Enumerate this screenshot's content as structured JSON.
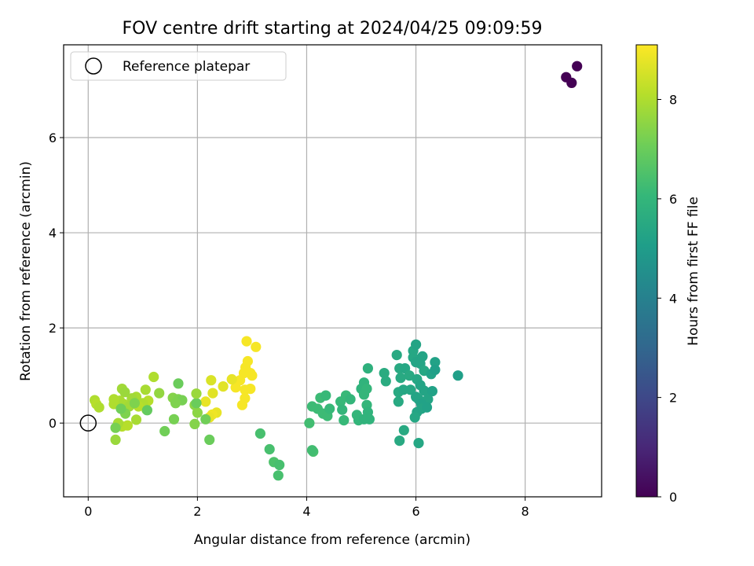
{
  "chart_data": {
    "type": "scatter",
    "title": "FOV centre drift starting at 2024/04/25 09:09:59",
    "xlabel": "Angular distance from reference (arcmin)",
    "ylabel": "Rotation from reference (arcmin)",
    "xlim": [
      -0.45,
      9.4
    ],
    "ylim": [
      -1.55,
      7.95
    ],
    "xticks": [
      0,
      2,
      4,
      6,
      8
    ],
    "yticks": [
      0,
      2,
      4,
      6
    ],
    "grid": true,
    "legend": {
      "position": "top-left",
      "entries": [
        {
          "label": "Reference platepar",
          "marker": "open-circle"
        }
      ]
    },
    "reference_point": {
      "x": 0,
      "y": 0
    },
    "colorbar": {
      "label": "Hours from first FF file",
      "range": [
        0,
        9.1
      ],
      "ticks": [
        0,
        2,
        4,
        6,
        8
      ],
      "colormap": "viridis",
      "stops": [
        "#440154",
        "#482878",
        "#3e4989",
        "#31688e",
        "#26828e",
        "#1f9e89",
        "#35b779",
        "#6ece58",
        "#b5de2b",
        "#fde725"
      ]
    },
    "series": [
      {
        "points": [
          [
            8.75,
            7.27,
            0
          ],
          [
            8.85,
            7.15,
            0
          ],
          [
            8.95,
            7.5,
            0
          ],
          [
            2.9,
            1.72,
            9
          ],
          [
            3.07,
            1.6,
            9
          ],
          [
            2.92,
            1.3,
            9
          ],
          [
            2.88,
            1.17,
            9
          ],
          [
            2.85,
            1.05,
            9
          ],
          [
            2.97,
            1.05,
            9
          ],
          [
            3.0,
            1.0,
            9
          ],
          [
            2.78,
            0.9,
            9
          ],
          [
            2.7,
            0.75,
            9
          ],
          [
            2.87,
            0.7,
            9
          ],
          [
            2.97,
            0.72,
            9
          ],
          [
            2.87,
            0.52,
            9
          ],
          [
            2.82,
            0.38,
            9
          ],
          [
            2.63,
            0.92,
            8.8
          ],
          [
            2.47,
            0.77,
            8.7
          ],
          [
            2.25,
            0.9,
            8.6
          ],
          [
            2.28,
            0.63,
            8.7
          ],
          [
            2.15,
            0.45,
            8.8
          ],
          [
            2.35,
            0.22,
            8.8
          ],
          [
            2.27,
            0.18,
            8.9
          ],
          [
            2.22,
            0.12,
            8.8
          ],
          [
            1.2,
            0.97,
            8.0
          ],
          [
            1.05,
            0.7,
            7.9
          ],
          [
            1.1,
            0.47,
            8.1
          ],
          [
            1.0,
            0.42,
            8.0
          ],
          [
            1.07,
            0.28,
            8.0
          ],
          [
            0.92,
            0.35,
            8.1
          ],
          [
            0.88,
            0.55,
            7.9
          ],
          [
            0.8,
            0.52,
            7.8
          ],
          [
            0.62,
            0.72,
            7.8
          ],
          [
            0.67,
            0.65,
            7.7
          ],
          [
            0.58,
            0.47,
            7.9
          ],
          [
            0.47,
            0.5,
            8.0
          ],
          [
            0.47,
            0.4,
            8.0
          ],
          [
            0.65,
            0.4,
            7.9
          ],
          [
            0.75,
            0.35,
            7.8
          ],
          [
            0.12,
            0.48,
            8.0
          ],
          [
            0.15,
            0.4,
            8.1
          ],
          [
            0.2,
            0.33,
            8.0
          ],
          [
            0.72,
            -0.05,
            8.1
          ],
          [
            0.62,
            -0.07,
            8.1
          ],
          [
            0.55,
            0.0,
            7.9
          ],
          [
            0.5,
            -0.35,
            7.7
          ],
          [
            0.88,
            0.07,
            7.9
          ],
          [
            1.3,
            0.63,
            7.6
          ],
          [
            1.55,
            0.53,
            7.4
          ],
          [
            1.65,
            0.5,
            7.3
          ],
          [
            1.72,
            0.48,
            7.2
          ],
          [
            1.6,
            0.42,
            7.3
          ],
          [
            1.65,
            0.83,
            7.0
          ],
          [
            1.95,
            0.38,
            7.5
          ],
          [
            2.0,
            0.22,
            7.5
          ],
          [
            1.95,
            -0.02,
            7.4
          ],
          [
            1.57,
            0.08,
            7.2
          ],
          [
            2.15,
            0.08,
            7.1
          ],
          [
            1.4,
            -0.17,
            7.1
          ],
          [
            2.22,
            -0.35,
            7.0
          ],
          [
            0.5,
            -0.1,
            7.2
          ],
          [
            0.68,
            0.2,
            7.3
          ],
          [
            0.6,
            0.3,
            7.1
          ],
          [
            0.85,
            0.42,
            7.3
          ],
          [
            1.08,
            0.27,
            6.9
          ],
          [
            1.98,
            0.42,
            7.0
          ],
          [
            1.98,
            0.62,
            7.7
          ],
          [
            3.15,
            -0.22,
            6.4
          ],
          [
            3.32,
            -0.55,
            6.4
          ],
          [
            3.4,
            -0.82,
            6.5
          ],
          [
            3.5,
            -0.88,
            6.4
          ],
          [
            3.48,
            -1.1,
            6.4
          ],
          [
            4.12,
            -0.6,
            6.4
          ],
          [
            4.1,
            -0.57,
            6.3
          ],
          [
            4.05,
            0.0,
            6.3
          ],
          [
            4.1,
            0.35,
            6.2
          ],
          [
            4.2,
            0.3,
            6.2
          ],
          [
            4.25,
            0.53,
            6.2
          ],
          [
            4.35,
            0.58,
            6.1
          ],
          [
            4.3,
            0.2,
            6.2
          ],
          [
            4.38,
            0.15,
            6.2
          ],
          [
            4.42,
            0.3,
            6.1
          ],
          [
            4.62,
            0.45,
            6.1
          ],
          [
            4.72,
            0.58,
            6.1
          ],
          [
            4.8,
            0.5,
            6.0
          ],
          [
            4.65,
            0.28,
            6.0
          ],
          [
            4.68,
            0.06,
            6.1
          ],
          [
            4.92,
            0.17,
            6.0
          ],
          [
            4.95,
            0.06,
            6.0
          ],
          [
            5.05,
            0.85,
            5.9
          ],
          [
            5.0,
            0.72,
            5.9
          ],
          [
            5.1,
            0.72,
            6.0
          ],
          [
            5.05,
            0.6,
            6.0
          ],
          [
            5.12,
            1.15,
            5.8
          ],
          [
            5.1,
            0.38,
            6.0
          ],
          [
            5.12,
            0.23,
            5.9
          ],
          [
            5.15,
            0.08,
            5.9
          ],
          [
            5.05,
            0.08,
            5.9
          ],
          [
            5.42,
            1.05,
            5.6
          ],
          [
            5.45,
            0.88,
            5.6
          ],
          [
            5.65,
            1.43,
            5.5
          ],
          [
            5.7,
            1.15,
            5.5
          ],
          [
            5.8,
            1.15,
            5.4
          ],
          [
            5.72,
            0.95,
            5.5
          ],
          [
            5.88,
            1.0,
            5.5
          ],
          [
            5.95,
            1.52,
            5.4
          ],
          [
            6.0,
            1.65,
            5.3
          ],
          [
            5.95,
            1.38,
            5.4
          ],
          [
            6.0,
            1.28,
            5.3
          ],
          [
            6.08,
            1.25,
            5.3
          ],
          [
            6.12,
            1.4,
            5.3
          ],
          [
            6.15,
            1.1,
            5.4
          ],
          [
            6.02,
            0.92,
            5.4
          ],
          [
            6.08,
            0.8,
            5.3
          ],
          [
            5.68,
            0.65,
            5.5
          ],
          [
            5.77,
            0.7,
            5.4
          ],
          [
            5.9,
            0.7,
            5.4
          ],
          [
            6.15,
            0.68,
            5.3
          ],
          [
            6.22,
            0.5,
            5.3
          ],
          [
            6.3,
            0.67,
            5.2
          ],
          [
            6.28,
            1.03,
            5.2
          ],
          [
            6.35,
            1.28,
            5.2
          ],
          [
            6.35,
            1.12,
            5.1
          ],
          [
            6.0,
            0.55,
            5.3
          ],
          [
            6.05,
            0.5,
            5.3
          ],
          [
            6.1,
            0.4,
            5.2
          ],
          [
            5.68,
            0.45,
            5.5
          ],
          [
            6.1,
            0.3,
            5.3
          ],
          [
            6.2,
            0.33,
            5.2
          ],
          [
            6.02,
            0.23,
            5.3
          ],
          [
            5.98,
            0.12,
            5.4
          ],
          [
            5.78,
            -0.15,
            5.5
          ],
          [
            5.7,
            -0.37,
            5.5
          ],
          [
            6.05,
            -0.42,
            5.4
          ],
          [
            6.77,
            1.0,
            5.1
          ]
        ]
      }
    ]
  }
}
